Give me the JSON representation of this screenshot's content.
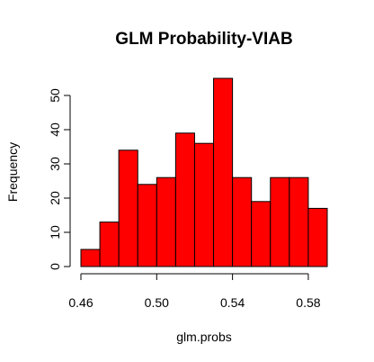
{
  "chart_data": {
    "type": "bar",
    "title": "GLM Probability-VIAB",
    "xlabel": "glm.probs",
    "ylabel": "Frequency",
    "bins": [
      {
        "start": 0.46,
        "end": 0.47,
        "count": 5
      },
      {
        "start": 0.47,
        "end": 0.48,
        "count": 13
      },
      {
        "start": 0.48,
        "end": 0.49,
        "count": 34
      },
      {
        "start": 0.49,
        "end": 0.5,
        "count": 24
      },
      {
        "start": 0.5,
        "end": 0.51,
        "count": 26
      },
      {
        "start": 0.51,
        "end": 0.52,
        "count": 39
      },
      {
        "start": 0.52,
        "end": 0.53,
        "count": 36
      },
      {
        "start": 0.53,
        "end": 0.54,
        "count": 55
      },
      {
        "start": 0.54,
        "end": 0.55,
        "count": 26
      },
      {
        "start": 0.55,
        "end": 0.56,
        "count": 19
      },
      {
        "start": 0.56,
        "end": 0.57,
        "count": 26
      },
      {
        "start": 0.57,
        "end": 0.58,
        "count": 26
      },
      {
        "start": 0.58,
        "end": 0.59,
        "count": 17
      }
    ],
    "xlim": [
      0.46,
      0.59
    ],
    "ylim": [
      0,
      55
    ],
    "x_ticks": [
      "0.46",
      "0.50",
      "0.54",
      "0.58"
    ],
    "x_tick_values": [
      0.46,
      0.5,
      0.54,
      0.58
    ],
    "y_ticks": [
      "0",
      "10",
      "20",
      "30",
      "40",
      "50"
    ],
    "y_tick_values": [
      0,
      10,
      20,
      30,
      40,
      50
    ],
    "bar_color": "#ff0000",
    "grid": false
  }
}
